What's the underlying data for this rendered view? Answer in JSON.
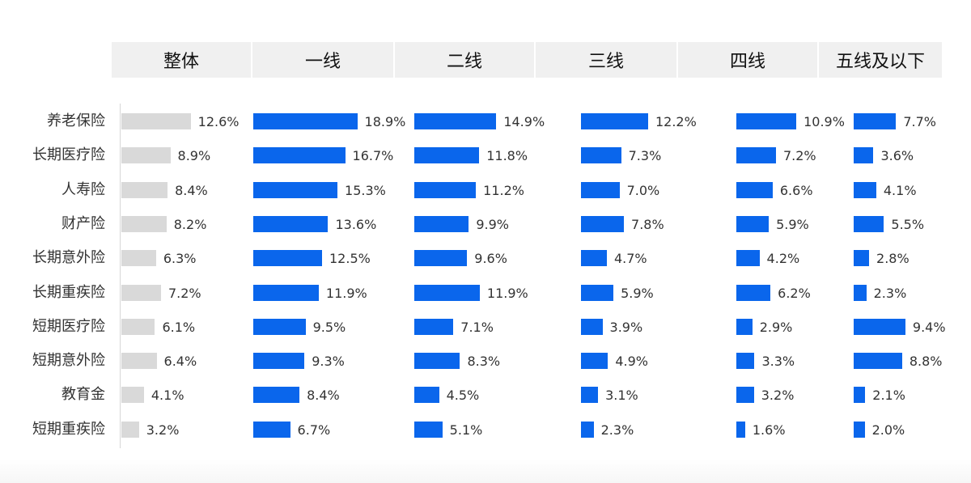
{
  "chart_data": {
    "type": "bar",
    "orientation": "horizontal",
    "panels": [
      "整体",
      "一线",
      "二线",
      "三线",
      "四线",
      "五线及以下"
    ],
    "categories": [
      "养老保险",
      "长期医疗险",
      "人寿险",
      "财产险",
      "长期意外险",
      "长期重疾险",
      "短期医疗险",
      "短期意外险",
      "教育金",
      "短期重疾险"
    ],
    "series": [
      {
        "name": "整体",
        "values": [
          12.6,
          8.9,
          8.4,
          8.2,
          6.3,
          7.2,
          6.1,
          6.4,
          4.1,
          3.2
        ]
      },
      {
        "name": "一线",
        "values": [
          18.9,
          16.7,
          15.3,
          13.6,
          12.5,
          11.9,
          9.5,
          9.3,
          8.4,
          6.7
        ]
      },
      {
        "name": "二线",
        "values": [
          14.9,
          11.8,
          11.2,
          9.9,
          9.6,
          11.9,
          7.1,
          8.3,
          4.5,
          5.1
        ]
      },
      {
        "name": "三线",
        "values": [
          12.2,
          7.3,
          7.0,
          7.8,
          4.7,
          5.9,
          3.9,
          4.9,
          3.1,
          2.3
        ]
      },
      {
        "name": "四线",
        "values": [
          10.9,
          7.2,
          6.6,
          5.9,
          4.2,
          6.2,
          2.9,
          3.3,
          3.2,
          1.6
        ]
      },
      {
        "name": "五线及以下",
        "values": [
          7.7,
          3.6,
          4.1,
          5.5,
          2.8,
          2.3,
          9.4,
          8.8,
          2.1,
          2.0
        ]
      }
    ],
    "value_suffix": "%",
    "colors": {
      "overall": "#d9d9d9",
      "tiers": "#0a66ec"
    },
    "grid": false,
    "legend": "none"
  }
}
